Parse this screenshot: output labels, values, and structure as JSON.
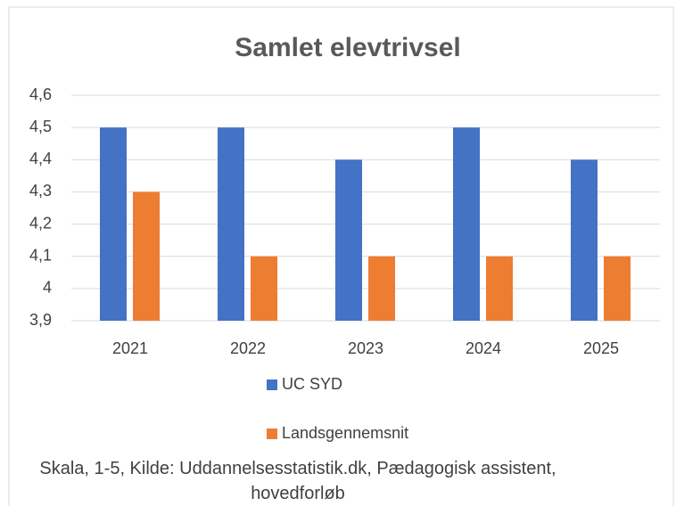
{
  "chart_data": {
    "type": "bar",
    "title": "Samlet elevtrivsel",
    "categories": [
      "2021",
      "2022",
      "2023",
      "2024",
      "2025"
    ],
    "series": [
      {
        "name": "UC SYD",
        "color": "#4472c4",
        "values": [
          4.5,
          4.5,
          4.4,
          4.5,
          4.4
        ]
      },
      {
        "name": "Landsgennemsnit",
        "color": "#ed7d31",
        "values": [
          4.3,
          4.1,
          4.1,
          4.1,
          4.1
        ]
      }
    ],
    "ylim": [
      3.9,
      4.6
    ],
    "yticks": [
      {
        "value": 3.9,
        "label": "3,9"
      },
      4,
      {
        "value": 4.1,
        "label": "4,1"
      },
      {
        "value": 4.2,
        "label": "4,2"
      },
      {
        "value": 4.3,
        "label": "4,3"
      },
      {
        "value": 4.4,
        "label": "4,4"
      },
      {
        "value": 4.5,
        "label": "4,5"
      },
      {
        "value": 4.6,
        "label": "4,6"
      }
    ],
    "grid": true,
    "legend": "bottom",
    "caption": "Skala, 1-5, Kilde: Uddannelsesstatistik.dk, Pædagogisk assistent, hovedforløb"
  }
}
